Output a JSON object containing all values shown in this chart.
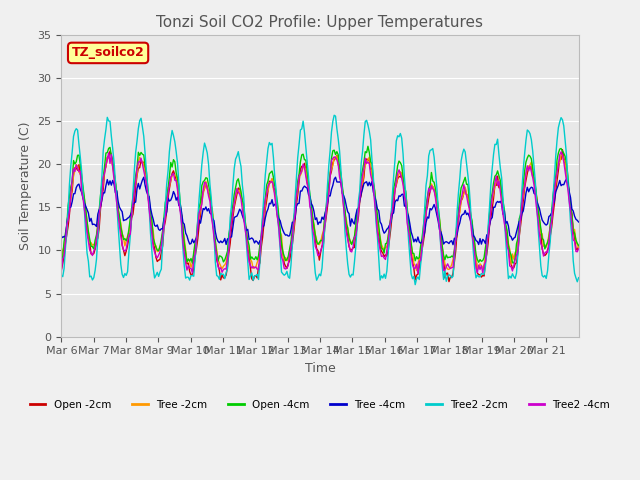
{
  "title": "Tonzi Soil CO2 Profile: Upper Temperatures",
  "xlabel": "Time",
  "ylabel": "Soil Temperature (C)",
  "ylim": [
    0,
    35
  ],
  "yticks": [
    0,
    5,
    10,
    15,
    20,
    25,
    30,
    35
  ],
  "legend_label": "TZ_soilco2",
  "series": [
    {
      "label": "Open -2cm",
      "color": "#cc0000"
    },
    {
      "label": "Tree -2cm",
      "color": "#ff9900"
    },
    {
      "label": "Open -4cm",
      "color": "#00cc00"
    },
    {
      "label": "Tree -4cm",
      "color": "#0000cc"
    },
    {
      "label": "Tree2 -2cm",
      "color": "#00cccc"
    },
    {
      "label": "Tree2 -4cm",
      "color": "#cc00cc"
    }
  ],
  "xtick_labels": [
    "Mar 6",
    "Mar 7",
    "Mar 8",
    "Mar 9",
    "Mar 10",
    "Mar 11",
    "Mar 12",
    "Mar 13",
    "Mar 14",
    "Mar 15",
    "Mar 16",
    "Mar 17",
    "Mar 18",
    "Mar 19",
    "Mar 20",
    "Mar 21"
  ],
  "n_days": 16
}
